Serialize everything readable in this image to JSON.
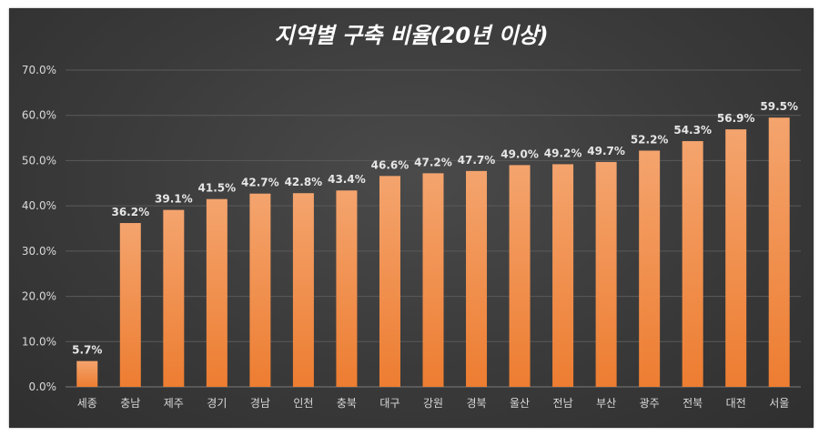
{
  "chart_data": {
    "type": "bar",
    "title": "지역별 구축 비율(20년 이상)",
    "categories": [
      "세종",
      "충남",
      "제주",
      "경기",
      "경남",
      "인천",
      "충북",
      "대구",
      "강원",
      "경북",
      "울산",
      "전남",
      "부산",
      "광주",
      "전북",
      "대전",
      "서울"
    ],
    "values": [
      5.7,
      36.2,
      39.1,
      41.5,
      42.7,
      42.8,
      43.4,
      46.6,
      47.2,
      47.7,
      49.0,
      49.2,
      49.7,
      52.2,
      54.3,
      56.9,
      59.5
    ],
    "value_labels": [
      "5.7%",
      "36.2%",
      "39.1%",
      "41.5%",
      "42.7%",
      "42.8%",
      "43.4%",
      "46.6%",
      "47.2%",
      "47.7%",
      "49.0%",
      "49.2%",
      "49.7%",
      "52.2%",
      "54.3%",
      "56.9%",
      "59.5%"
    ],
    "ylim": [
      0,
      70
    ],
    "yticks": [
      0,
      10,
      20,
      30,
      40,
      50,
      60,
      70
    ],
    "ytick_labels": [
      "0.0%",
      "10.0%",
      "20.0%",
      "30.0%",
      "40.0%",
      "50.0%",
      "60.0%",
      "70.0%"
    ],
    "xlabel": "",
    "ylabel": "",
    "grid": true,
    "bar_color": "#ed7d31",
    "bar_highlight_color": "#f4a46e",
    "background_color": "#3f3f3f"
  }
}
